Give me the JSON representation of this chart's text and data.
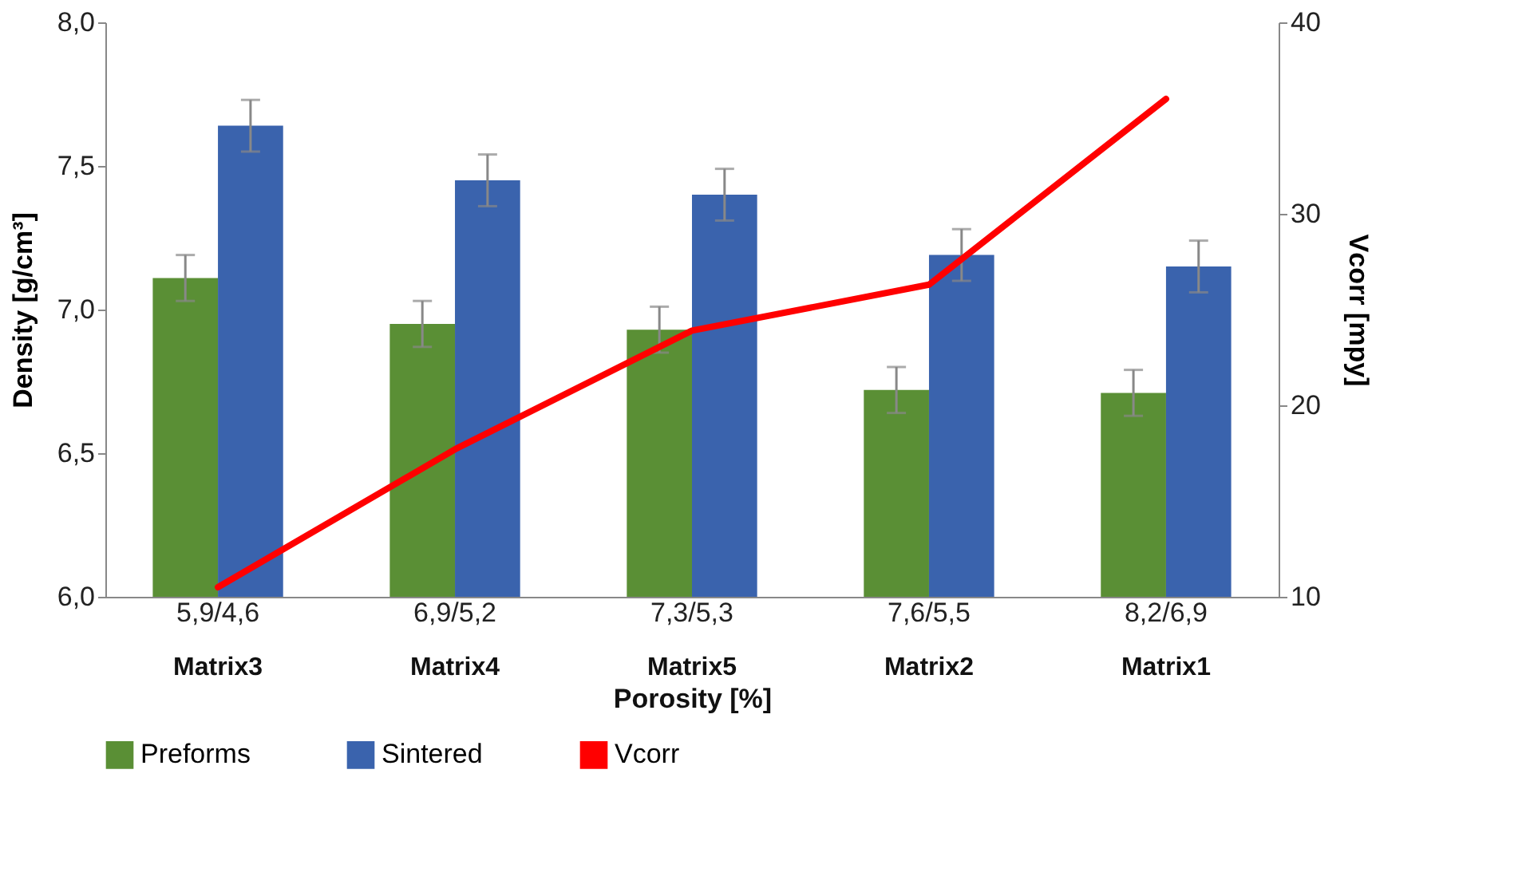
{
  "chart_data": {
    "type": "bar",
    "xlabel": "Porosity  [%]",
    "ylabel": "Density [g/cm³]",
    "y2label": "Vcorr [mpy]",
    "categories": [
      "5,9/4,6",
      "6,9/5,2",
      "7,3/5,3",
      "7,6/5,5",
      "8,2/6,9"
    ],
    "series": [
      {
        "name": "Preforms",
        "color": "#5a8f35",
        "values": [
          7.11,
          6.95,
          6.93,
          6.72,
          6.71
        ],
        "errors": [
          0.08,
          0.08,
          0.08,
          0.08,
          0.08
        ]
      },
      {
        "name": "Sintered",
        "color": "#3a63ad",
        "values": [
          7.64,
          7.45,
          7.4,
          7.19,
          7.15
        ],
        "errors": [
          0.09,
          0.09,
          0.09,
          0.09,
          0.09
        ]
      },
      {
        "name": "Vcorr",
        "type": "line",
        "axis": "y2",
        "color": "#ff0000",
        "values": [
          10.5,
          17.7,
          23.9,
          26.3,
          36.0
        ]
      }
    ],
    "ylim": [
      6,
      8
    ],
    "yticks": [
      {
        "value": 6,
        "label": "6,0"
      },
      {
        "value": 6.5,
        "label": "6,5"
      },
      {
        "value": 7,
        "label": "7,0"
      },
      {
        "value": 7.5,
        "label": "7,5"
      },
      {
        "value": 8,
        "label": "8,0"
      }
    ],
    "y2lim": [
      10,
      40
    ],
    "y2ticks": [
      10,
      20,
      30,
      40
    ],
    "annotations": [
      "Matrix3",
      "Matrix4",
      "Matrix5",
      "Matrix2",
      "Matrix1"
    ],
    "legend": "bottom",
    "grid": false,
    "marker": "none",
    "line_style": "solid"
  }
}
